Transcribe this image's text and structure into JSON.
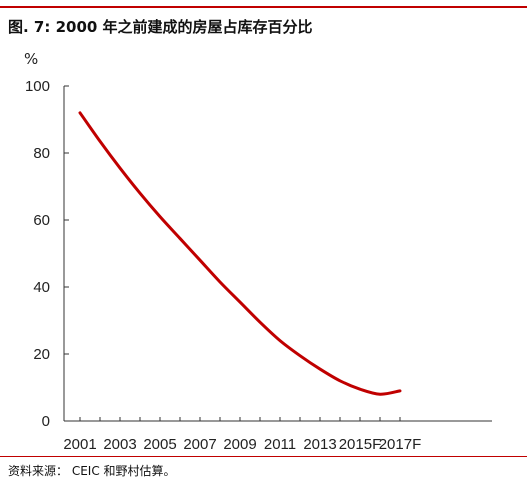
{
  "figure": {
    "title": "图. 7: 2000 年之前建成的房屋占库存百分比",
    "source": "资料来源： CEIC 和野村估算。"
  },
  "chart_data": {
    "type": "line",
    "ylabel": "%",
    "ylim": [
      0,
      100
    ],
    "yticks": [
      0,
      20,
      40,
      60,
      80,
      100
    ],
    "categories": [
      "2001",
      "2002",
      "2003",
      "2004",
      "2005",
      "2006",
      "2007",
      "2008",
      "2009",
      "2010",
      "2011",
      "2012",
      "2013",
      "2014",
      "2015F",
      "2016F",
      "2017F"
    ],
    "x_tick_labels": [
      "2001",
      "2003",
      "2005",
      "2007",
      "2009",
      "2011",
      "2013",
      "2015F",
      "2017F"
    ],
    "series": [
      {
        "color": "#c00000",
        "values": [
          92,
          83.5,
          75.5,
          68,
          61,
          54.5,
          48,
          41.5,
          35.5,
          29.5,
          24,
          19.5,
          15.5,
          12,
          9.5,
          8,
          9
        ]
      }
    ],
    "grid": false,
    "legend": "none"
  }
}
